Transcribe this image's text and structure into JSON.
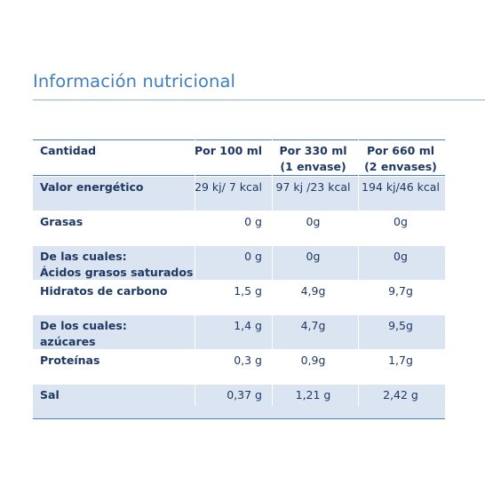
{
  "title": "Información nutricional",
  "table": {
    "headers": [
      "Cantidad",
      "Por 100 ml",
      "Por 330 ml\n(1 envase)",
      "Por 660 ml\n(2 envases)"
    ],
    "header_lines": {
      "c0": "Cantidad",
      "c1": "Por 100 ml",
      "c2_l1": "Por 330 ml",
      "c2_l2": "(1 envase)",
      "c3_l1": "Por 660 ml",
      "c3_l2": "(2 envases)"
    },
    "rows": [
      {
        "label_l1": "Valor energético",
        "label_l2": "",
        "v100": "29 kj/ 7 kcal",
        "v330": "97 kj /23 kcal",
        "v660": "194 kj/46 kcal",
        "shaded": true
      },
      {
        "label_l1": "Grasas",
        "label_l2": "",
        "v100": "0 g",
        "v330": "0g",
        "v660": "0g",
        "shaded": false
      },
      {
        "label_l1": "De las cuales:",
        "label_l2": "Ácidos grasos saturados",
        "v100": "0 g",
        "v330": "0g",
        "v660": "0g",
        "shaded": true
      },
      {
        "label_l1": "Hidratos de carbono",
        "label_l2": "",
        "v100": "1,5 g",
        "v330": "4,9g",
        "v660": "9,7g",
        "shaded": false
      },
      {
        "label_l1": "De los cuales:",
        "label_l2": "azúcares",
        "v100": "1,4 g",
        "v330": "4,7g",
        "v660": "9,5g",
        "shaded": true
      },
      {
        "label_l1": "Proteínas",
        "label_l2": "",
        "v100": "0,3 g",
        "v330": "0,9g",
        "v660": "1,7g",
        "shaded": false
      },
      {
        "label_l1": "Sal",
        "label_l2": "",
        "v100": "0,37 g",
        "v330": "1,21 g",
        "v660": "2,42 g",
        "shaded": true
      }
    ]
  },
  "colors": {
    "title": "#3f7fbf",
    "text": "#1f3864",
    "shade": "#dbe5f1",
    "rule": "#4a7fba"
  }
}
